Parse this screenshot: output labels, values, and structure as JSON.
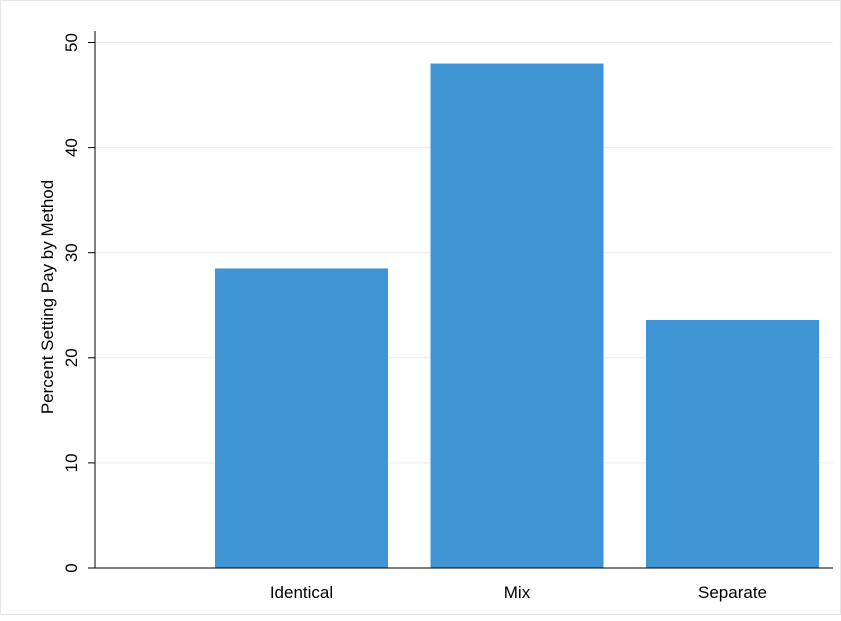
{
  "chart_data": {
    "type": "bar",
    "categories": [
      "Identical",
      "Mix",
      "Separate"
    ],
    "values": [
      28.5,
      48.0,
      23.6
    ],
    "ylabel": "Percent Setting Pay by Method",
    "ylim": [
      0,
      50
    ],
    "yticks": [
      0,
      10,
      20,
      30,
      40,
      50
    ],
    "grid": true,
    "legend": "none",
    "bar_color": "#3f95d3",
    "grid_color": "#eaeaea"
  }
}
